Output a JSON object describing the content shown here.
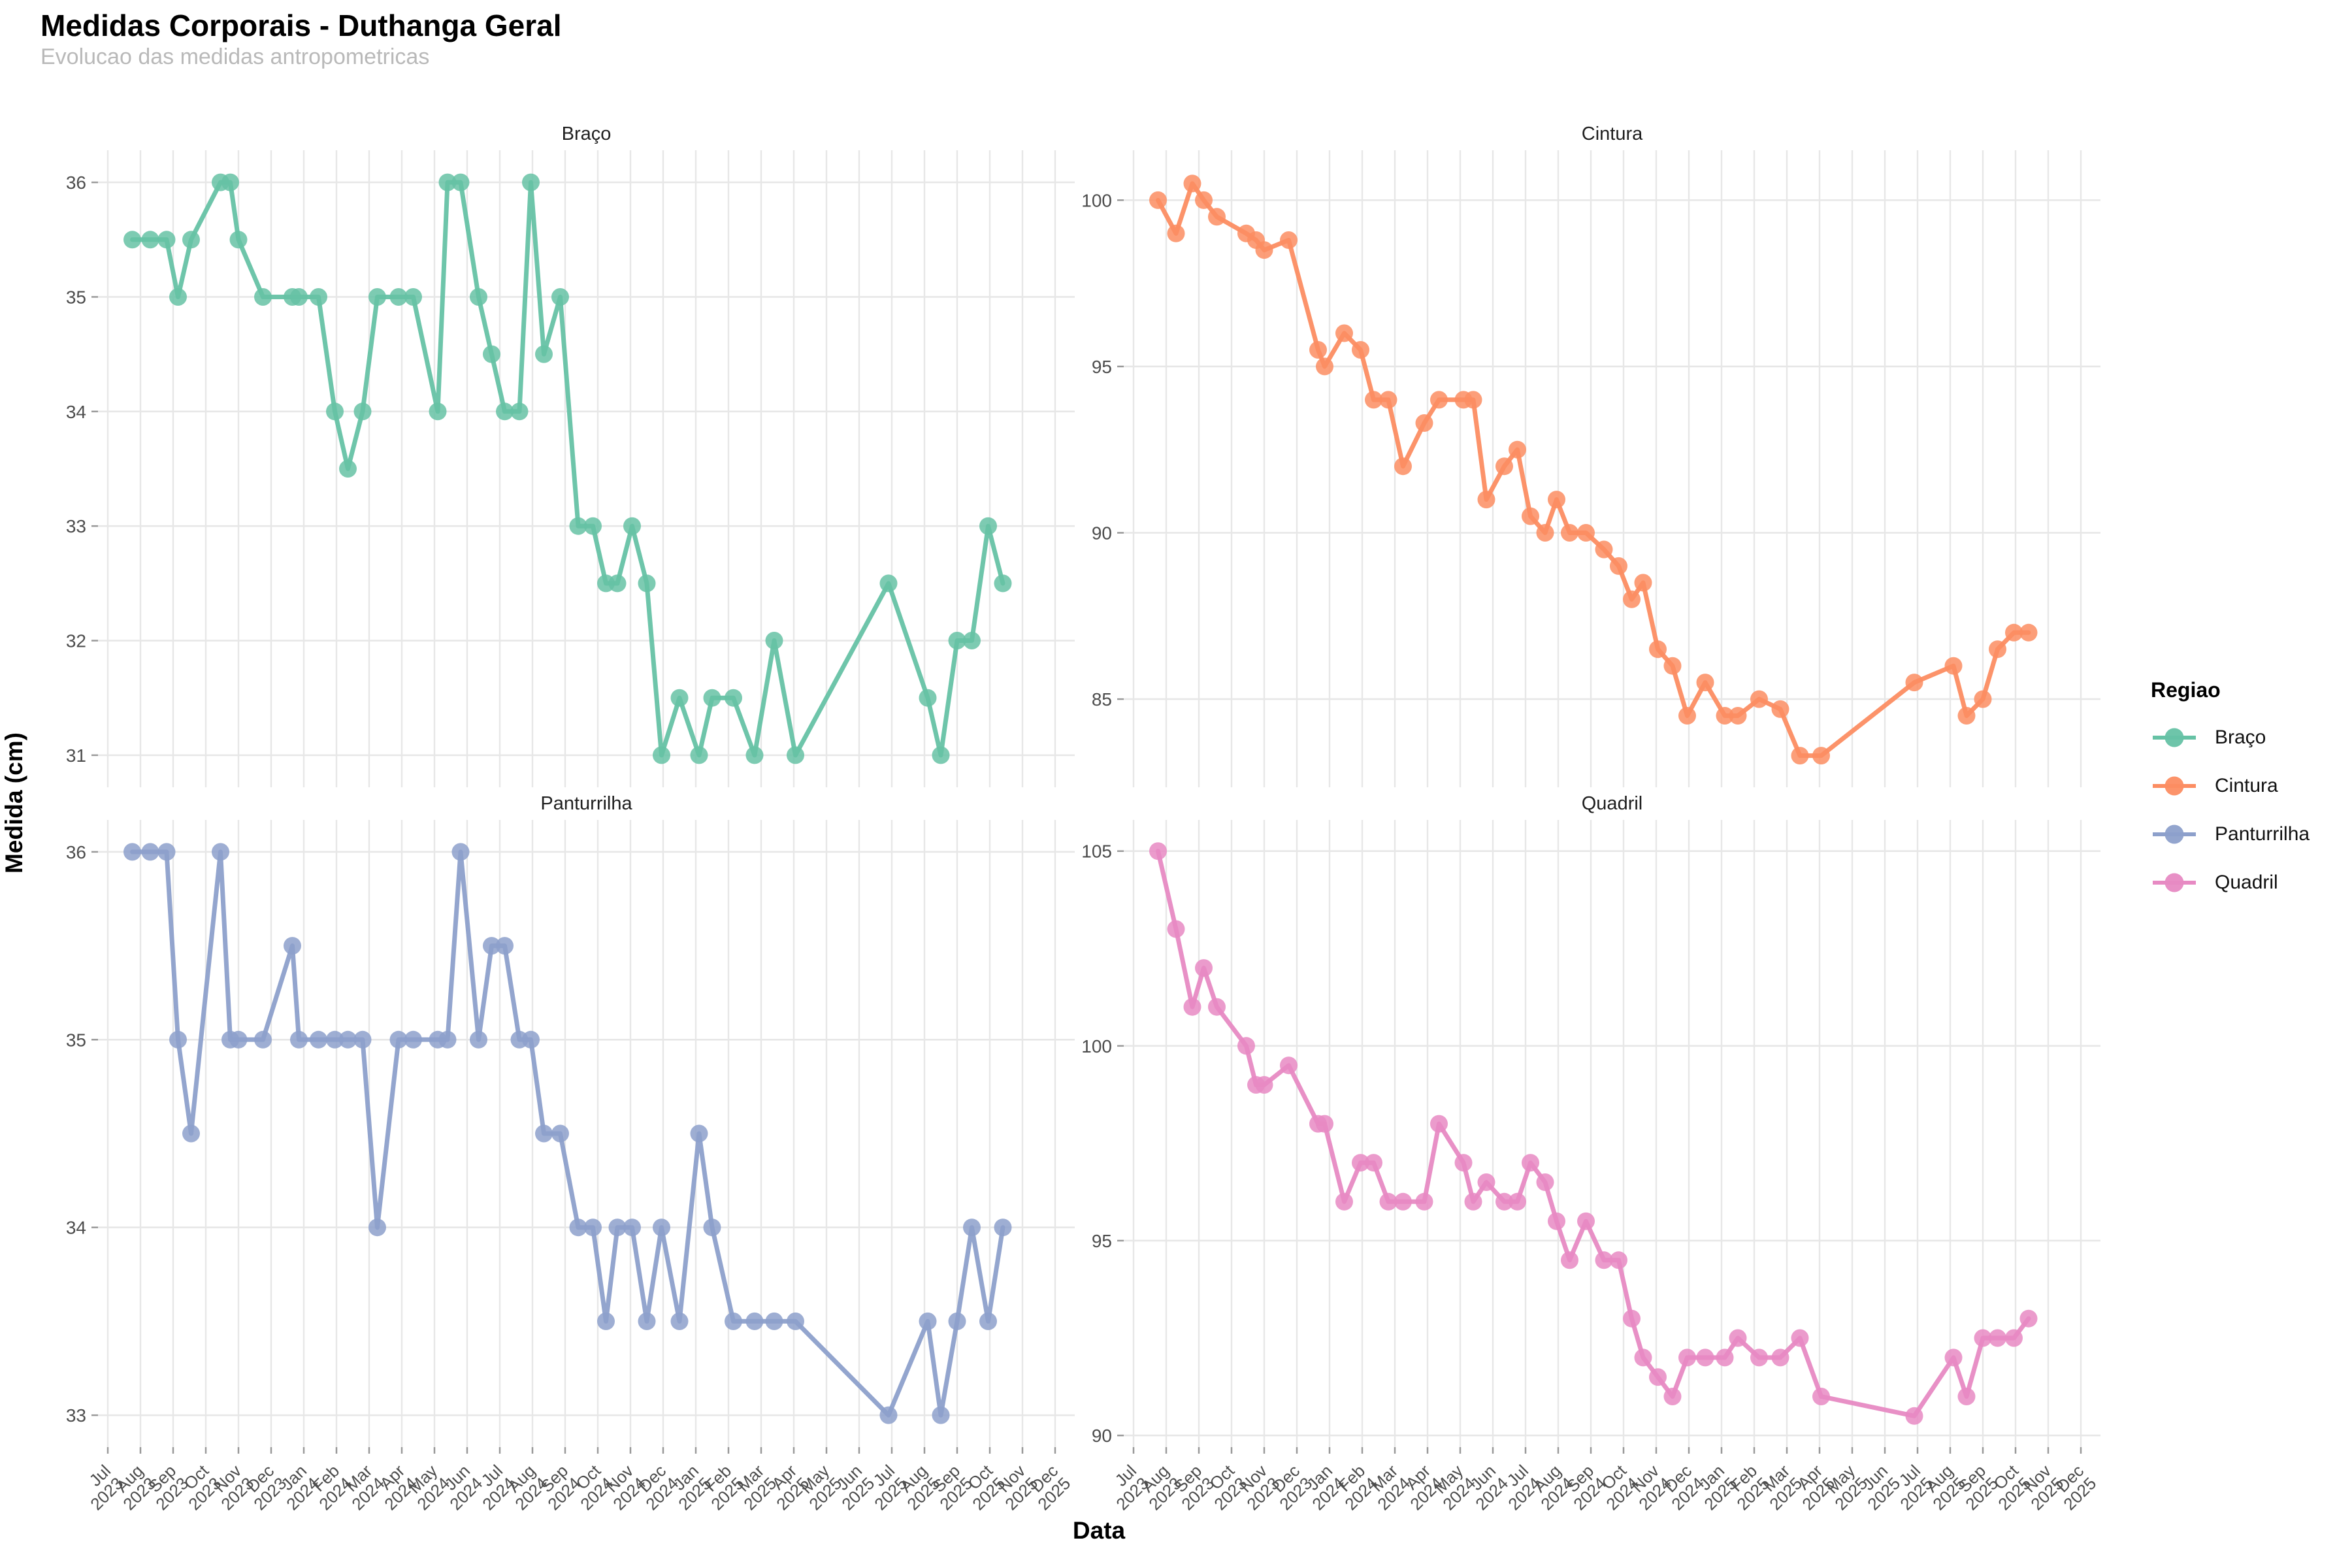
{
  "title": "Medidas Corporais - Duthanga Geral",
  "subtitle": "Evolucao das medidas antropometricas",
  "x_axis_title": "Data",
  "y_axis_title": "Medida (cm)",
  "legend": {
    "title": "Regiao",
    "position": "right",
    "items": [
      {
        "label": "Braço",
        "color": "#66C2A5"
      },
      {
        "label": "Cintura",
        "color": "#FC8D62"
      },
      {
        "label": "Panturrilha",
        "color": "#8DA0CB"
      },
      {
        "label": "Quadril",
        "color": "#E78AC3"
      }
    ]
  },
  "colors": {
    "background": "#ffffff",
    "grid": "#e7e7e7",
    "axis_text": "#4d4d4d",
    "tick_mark": "#999999",
    "subtitle_text": "#b9b9b9"
  },
  "chart_data": {
    "type": "line",
    "layout": "facet-grid-2x2",
    "grid": true,
    "legend_position": "right",
    "x": {
      "label": "Data",
      "range": [
        "Jul 2023",
        "Dec 2025"
      ],
      "tick_labels": [
        {
          "month": "Jul",
          "year": "2023"
        },
        {
          "month": "Aug",
          "year": "2023"
        },
        {
          "month": "Sep",
          "year": "2023"
        },
        {
          "month": "Oct",
          "year": "2023"
        },
        {
          "month": "Nov",
          "year": "2023"
        },
        {
          "month": "Dec",
          "year": "2023"
        },
        {
          "month": "Jan",
          "year": "2024"
        },
        {
          "month": "Feb",
          "year": "2024"
        },
        {
          "month": "Mar",
          "year": "2024"
        },
        {
          "month": "Apr",
          "year": "2024"
        },
        {
          "month": "May",
          "year": "2024"
        },
        {
          "month": "Jun",
          "year": "2024"
        },
        {
          "month": "Jul",
          "year": "2024"
        },
        {
          "month": "Aug",
          "year": "2024"
        },
        {
          "month": "Sep",
          "year": "2024"
        },
        {
          "month": "Oct",
          "year": "2024"
        },
        {
          "month": "Nov",
          "year": "2024"
        },
        {
          "month": "Dec",
          "year": "2024"
        },
        {
          "month": "Jan",
          "year": "2025"
        },
        {
          "month": "Feb",
          "year": "2025"
        },
        {
          "month": "Mar",
          "year": "2025"
        },
        {
          "month": "Apr",
          "year": "2025"
        },
        {
          "month": "May",
          "year": "2025"
        },
        {
          "month": "Jun",
          "year": "2025"
        },
        {
          "month": "Jul",
          "year": "2025"
        },
        {
          "month": "Aug",
          "year": "2025"
        },
        {
          "month": "Sep",
          "year": "2025"
        },
        {
          "month": "Oct",
          "year": "2025"
        },
        {
          "month": "Nov",
          "year": "2025"
        },
        {
          "month": "Dec",
          "year": "2025"
        }
      ],
      "dates": [
        "2023-07-23",
        "2023-08-09",
        "2023-08-24",
        "2023-09-05",
        "2023-09-17",
        "2023-10-14",
        "2023-10-23",
        "2023-11-01",
        "2023-11-23",
        "2023-12-21",
        "2023-12-27",
        "2024-01-14",
        "2024-01-29",
        "2024-02-11",
        "2024-02-24",
        "2024-03-08",
        "2024-03-28",
        "2024-04-11",
        "2024-05-04",
        "2024-05-13",
        "2024-05-25",
        "2024-06-11",
        "2024-06-24",
        "2024-07-05",
        "2024-07-19",
        "2024-07-30",
        "2024-08-11",
        "2024-08-27",
        "2024-09-13",
        "2024-09-27",
        "2024-10-09",
        "2024-10-19",
        "2024-11-03",
        "2024-11-16",
        "2024-11-30",
        "2024-12-17",
        "2025-01-04",
        "2025-01-16",
        "2025-02-05",
        "2025-02-25",
        "2025-03-14",
        "2025-04-03",
        "2025-06-29",
        "2025-08-04",
        "2025-08-16",
        "2025-08-31",
        "2025-09-14",
        "2025-09-29",
        "2025-10-13"
      ],
      "month_offsets": [
        0.75,
        1.3,
        1.8,
        2.15,
        2.55,
        3.45,
        3.75,
        4.0,
        4.75,
        5.65,
        5.85,
        6.45,
        6.95,
        7.35,
        7.8,
        8.25,
        8.9,
        9.35,
        10.1,
        10.4,
        10.8,
        11.35,
        11.75,
        12.15,
        12.6,
        12.95,
        13.35,
        13.85,
        14.4,
        14.85,
        15.25,
        15.6,
        16.05,
        16.5,
        16.95,
        17.5,
        18.1,
        18.5,
        19.15,
        19.8,
        20.4,
        21.05,
        23.9,
        25.1,
        25.5,
        26.0,
        26.45,
        26.95,
        27.4
      ]
    },
    "ylabel": "Medida (cm)",
    "facets": [
      {
        "id": "braco",
        "title": "Braço",
        "color": "#66C2A5",
        "ylim": [
          30.72,
          36.28
        ],
        "y_ticks": [
          31,
          32,
          33,
          34,
          35,
          36
        ],
        "values": [
          35.5,
          35.5,
          35.5,
          35,
          35.5,
          36,
          36,
          35.5,
          35,
          35,
          35,
          35,
          34,
          33.5,
          34,
          35,
          35,
          35,
          34,
          36,
          36,
          35,
          34.5,
          34,
          34,
          36,
          34.5,
          35,
          33,
          33,
          32.5,
          32.5,
          33,
          32.5,
          31,
          31.5,
          31,
          31.5,
          31.5,
          31,
          32,
          31,
          32.5,
          31.5,
          31,
          32,
          32,
          33,
          32.5
        ]
      },
      {
        "id": "cintura",
        "title": "Cintura",
        "color": "#FC8D62",
        "ylim": [
          82.35,
          101.5
        ],
        "y_ticks": [
          85,
          90,
          95,
          100
        ],
        "values": [
          100,
          99,
          100.5,
          100,
          99.5,
          99,
          98.8,
          98.5,
          98.8,
          95.5,
          95,
          96,
          95.5,
          94,
          94,
          92,
          93.3,
          94,
          94,
          94,
          91,
          92,
          92.5,
          90.5,
          90,
          91,
          90,
          90,
          89.5,
          89,
          88,
          88.5,
          86.5,
          86,
          84.5,
          85.5,
          84.5,
          84.5,
          85,
          84.7,
          83.3,
          83.3,
          85.5,
          86,
          84.5,
          85,
          86.5,
          87,
          87
        ]
      },
      {
        "id": "panturrilha",
        "title": "Panturrilha",
        "color": "#8DA0CB",
        "ylim": [
          32.83,
          36.17
        ],
        "y_ticks": [
          33,
          34,
          35,
          36
        ],
        "values": [
          36,
          36,
          36,
          35,
          34.5,
          36,
          35,
          35,
          35,
          35.5,
          35,
          35,
          35,
          35,
          35,
          34,
          35,
          35,
          35,
          35,
          36,
          35,
          35.5,
          35.5,
          35,
          35,
          34.5,
          34.5,
          34,
          34,
          33.5,
          34,
          34,
          33.5,
          34,
          33.5,
          34.5,
          34,
          33.5,
          33.5,
          33.5,
          33.5,
          33,
          33.5,
          33,
          33.5,
          34,
          33.5,
          34
        ]
      },
      {
        "id": "quadril",
        "title": "Quadril",
        "color": "#E78AC3",
        "ylim": [
          89.7,
          105.8
        ],
        "y_ticks": [
          90,
          95,
          100,
          105
        ],
        "values": [
          105,
          103,
          101,
          102,
          101,
          100,
          99,
          99,
          99.5,
          98,
          98,
          96,
          97,
          97,
          96,
          96,
          96,
          98,
          97,
          96,
          96.5,
          96,
          96,
          97,
          96.5,
          95.5,
          94.5,
          95.5,
          94.5,
          94.5,
          93,
          92,
          91.5,
          91,
          92,
          92,
          92,
          92.5,
          92,
          92,
          92.5,
          91,
          90.5,
          92,
          91,
          92.5,
          92.5,
          92.5,
          93
        ]
      }
    ]
  }
}
